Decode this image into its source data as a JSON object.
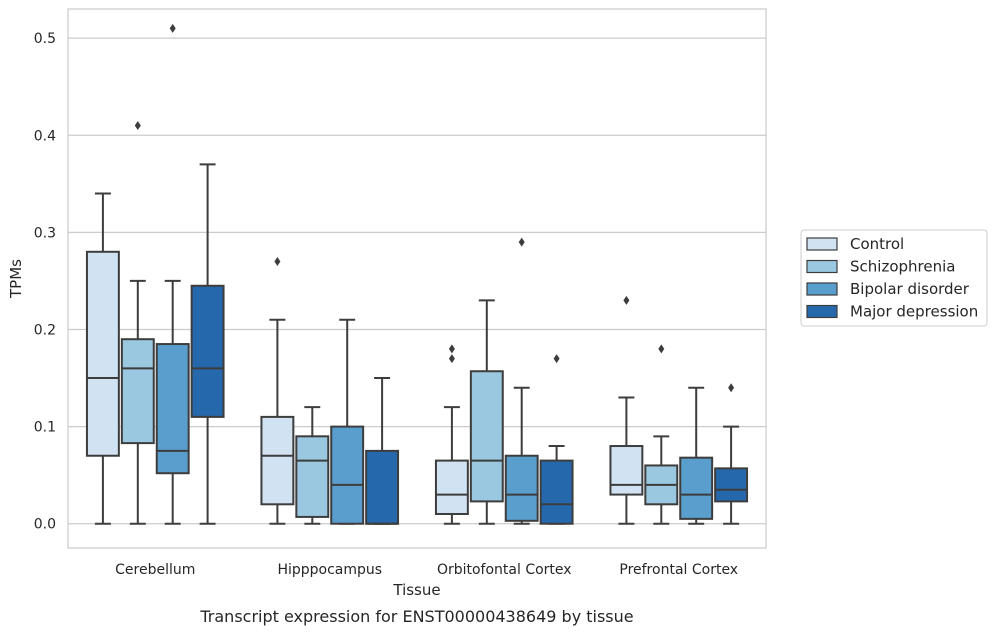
{
  "caption": "Transcript expression for ENST00000438649 by tissue",
  "chart_data": {
    "type": "box",
    "title": "",
    "xlabel": "Tissue",
    "ylabel": "TPMs",
    "ylim": [
      -0.025,
      0.53
    ],
    "yticks": [
      "0.0",
      "0.1",
      "0.2",
      "0.3",
      "0.4",
      "0.5"
    ],
    "grid": "horizontal",
    "legend_position": "right",
    "categories": [
      "Cerebellum",
      "Hipppocampus",
      "Orbitofontal Cortex",
      "Prefrontal Cortex"
    ],
    "series": [
      {
        "name": "Control",
        "color": "#d1e2f2",
        "boxes": [
          {
            "whislo": 0.0,
            "q1": 0.07,
            "med": 0.15,
            "q3": 0.28,
            "whishi": 0.34,
            "fliers": []
          },
          {
            "whislo": 0.0,
            "q1": 0.02,
            "med": 0.07,
            "q3": 0.11,
            "whishi": 0.21,
            "fliers": [
              0.27
            ]
          },
          {
            "whislo": 0.0,
            "q1": 0.01,
            "med": 0.03,
            "q3": 0.065,
            "whishi": 0.12,
            "fliers": [
              0.17,
              0.18
            ]
          },
          {
            "whislo": 0.0,
            "q1": 0.03,
            "med": 0.04,
            "q3": 0.08,
            "whishi": 0.13,
            "fliers": [
              0.23
            ]
          }
        ]
      },
      {
        "name": "Schizophrenia",
        "color": "#9ac8e0",
        "boxes": [
          {
            "whislo": 0.0,
            "q1": 0.083,
            "med": 0.16,
            "q3": 0.19,
            "whishi": 0.25,
            "fliers": [
              0.41
            ]
          },
          {
            "whislo": 0.0,
            "q1": 0.007,
            "med": 0.065,
            "q3": 0.09,
            "whishi": 0.12,
            "fliers": []
          },
          {
            "whislo": 0.0,
            "q1": 0.023,
            "med": 0.065,
            "q3": 0.157,
            "whishi": 0.23,
            "fliers": []
          },
          {
            "whislo": 0.0,
            "q1": 0.02,
            "med": 0.04,
            "q3": 0.06,
            "whishi": 0.09,
            "fliers": [
              0.18
            ]
          }
        ]
      },
      {
        "name": "Bipolar disorder",
        "color": "#5a9ecd",
        "boxes": [
          {
            "whislo": 0.0,
            "q1": 0.052,
            "med": 0.075,
            "q3": 0.185,
            "whishi": 0.25,
            "fliers": [
              0.51
            ]
          },
          {
            "whislo": 0.0,
            "q1": 0.0,
            "med": 0.04,
            "q3": 0.1,
            "whishi": 0.21,
            "fliers": []
          },
          {
            "whislo": 0.0,
            "q1": 0.003,
            "med": 0.03,
            "q3": 0.07,
            "whishi": 0.14,
            "fliers": [
              0.29
            ]
          },
          {
            "whislo": 0.0,
            "q1": 0.005,
            "med": 0.03,
            "q3": 0.068,
            "whishi": 0.14,
            "fliers": []
          }
        ]
      },
      {
        "name": "Major depression",
        "color": "#2668ac",
        "boxes": [
          {
            "whislo": 0.0,
            "q1": 0.11,
            "med": 0.16,
            "q3": 0.245,
            "whishi": 0.37,
            "fliers": []
          },
          {
            "whislo": 0.0,
            "q1": 0.0,
            "med": 0.0,
            "q3": 0.075,
            "whishi": 0.15,
            "fliers": []
          },
          {
            "whislo": 0.0,
            "q1": 0.0,
            "med": 0.02,
            "q3": 0.065,
            "whishi": 0.08,
            "fliers": [
              0.17
            ]
          },
          {
            "whislo": 0.0,
            "q1": 0.023,
            "med": 0.035,
            "q3": 0.057,
            "whishi": 0.1,
            "fliers": [
              0.14
            ]
          }
        ]
      }
    ]
  }
}
